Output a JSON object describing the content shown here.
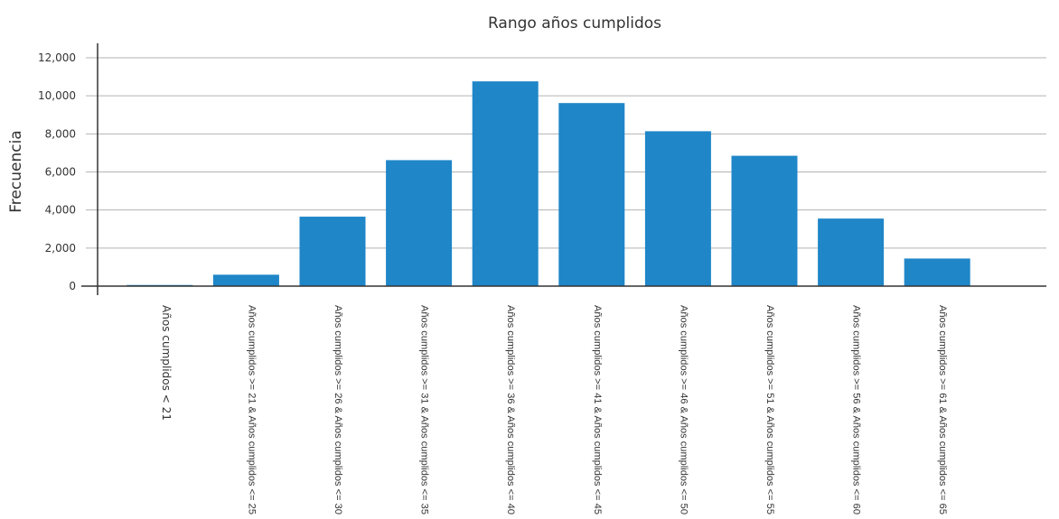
{
  "chart_data": {
    "type": "bar",
    "title": "Rango años cumplidos",
    "xlabel": "",
    "ylabel": "Frecuencia",
    "ylim": [
      0,
      12000
    ],
    "yticks": [
      0,
      2000,
      4000,
      6000,
      8000,
      10000,
      12000
    ],
    "ytick_labels": [
      "0",
      "2,000",
      "4,000",
      "6,000",
      "8,000",
      "10,000",
      "12,000"
    ],
    "grid": true,
    "bar_color": "#1f86c8",
    "categories": [
      "Años cumplidos < 21",
      "Años cumplidos >= 21 & Años cumplidos <= 25",
      "Años cumplidos >= 26 & Años cumplidos <= 30",
      "Años cumplidos >= 31 & Años cumplidos <= 35",
      "Años cumplidos >= 36 & Años cumplidos <= 40",
      "Años cumplidos >= 41 & Años cumplidos <= 45",
      "Años cumplidos >= 46 & Años cumplidos <= 50",
      "Años cumplidos >= 51 & Años cumplidos <= 55",
      "Años cumplidos >= 56 & Años cumplidos <= 60",
      "Años cumplidos >= 61 & Años cumplidos <= 65"
    ],
    "values": [
      60,
      600,
      3650,
      6620,
      10760,
      9620,
      8140,
      6850,
      3550,
      1450
    ]
  }
}
